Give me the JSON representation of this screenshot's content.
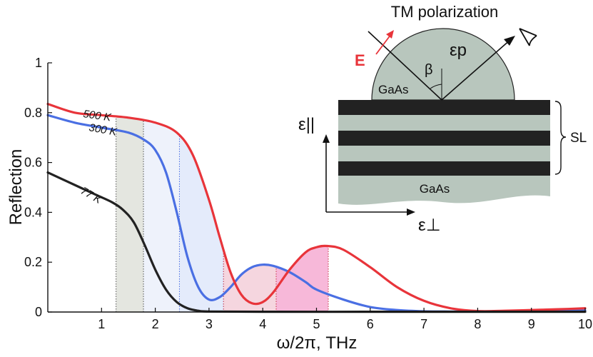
{
  "chart_data": {
    "type": "line",
    "xlabel": "ω/2π, THz",
    "ylabel": "Reflection",
    "xlim": [
      0,
      10
    ],
    "ylim": [
      0,
      1
    ],
    "x_ticks": [
      "1",
      "2",
      "3",
      "4",
      "5",
      "6",
      "7",
      "8",
      "9",
      "10"
    ],
    "y_ticks": [
      "0",
      "0.2",
      "0.4",
      "0.6",
      "0.8",
      "1"
    ],
    "grid": false,
    "series": [
      {
        "name": "500 K",
        "color": "#e8343a",
        "x": [
          0,
          0.5,
          1.0,
          1.5,
          2.0,
          2.4,
          2.7,
          3.0,
          3.2,
          3.4,
          3.6,
          3.8,
          4.0,
          4.2,
          4.5,
          4.8,
          5.0,
          5.2,
          5.5,
          6.0,
          6.5,
          7.0,
          7.5,
          8.0,
          8.5,
          9.0,
          9.5,
          10.0
        ],
        "y": [
          0.835,
          0.8,
          0.79,
          0.78,
          0.76,
          0.72,
          0.63,
          0.45,
          0.3,
          0.16,
          0.07,
          0.035,
          0.04,
          0.08,
          0.17,
          0.24,
          0.26,
          0.265,
          0.25,
          0.18,
          0.1,
          0.045,
          0.015,
          0.004,
          0.005,
          0.008,
          0.011,
          0.015
        ]
      },
      {
        "name": "300 K",
        "color": "#4a6fe3",
        "x": [
          0,
          0.5,
          1.0,
          1.5,
          1.8,
          2.0,
          2.2,
          2.4,
          2.6,
          2.8,
          3.0,
          3.2,
          3.4,
          3.6,
          3.8,
          4.0,
          4.2,
          4.5,
          4.8,
          5.0,
          5.5,
          6.0,
          6.5,
          7.0,
          7.5,
          8.0,
          8.5,
          9.0,
          9.5,
          10.0
        ],
        "y": [
          0.79,
          0.76,
          0.74,
          0.72,
          0.69,
          0.65,
          0.56,
          0.4,
          0.22,
          0.1,
          0.05,
          0.06,
          0.1,
          0.15,
          0.18,
          0.19,
          0.185,
          0.16,
          0.12,
          0.09,
          0.05,
          0.02,
          0.008,
          0.003,
          0.002,
          0.002,
          0.003,
          0.004,
          0.005,
          0.006
        ]
      },
      {
        "name": "77 K",
        "color": "#222222",
        "x": [
          0,
          0.3,
          0.6,
          0.9,
          1.2,
          1.4,
          1.6,
          1.8,
          2.0,
          2.2,
          2.4,
          2.6,
          2.8,
          3.0,
          4.0,
          6.0,
          8.0,
          10.0
        ],
        "y": [
          0.56,
          0.53,
          0.5,
          0.47,
          0.44,
          0.41,
          0.36,
          0.27,
          0.17,
          0.09,
          0.04,
          0.015,
          0.005,
          0.002,
          0.001,
          0.001,
          0.001,
          0.001
        ]
      }
    ],
    "shaded_regions": [
      {
        "from": 1.27,
        "to": 1.78,
        "color": "#e4e6e0",
        "line_color": "#555555"
      },
      {
        "from": 1.78,
        "to": 2.45,
        "color": "#eef2fb",
        "line_color": "#555555"
      },
      {
        "from": 2.45,
        "to": 3.27,
        "color": "#e4ebfb",
        "line_color": "#4a6fe3"
      },
      {
        "from": 3.27,
        "to": 4.25,
        "color": "#f5d6df",
        "line_color": "#c8364a"
      },
      {
        "from": 4.25,
        "to": 5.22,
        "color": "#f7b8d9",
        "line_color": "#c8364a"
      }
    ],
    "inset": {
      "title": "TM polarization",
      "field_label": "E",
      "prism_permittivity": "εp",
      "angle_label": "β",
      "prism_material": "GaAs",
      "substrate_material": "GaAs",
      "superlattice_label": "SL",
      "eps_parallel": "ε||",
      "eps_perp": "ε⊥"
    }
  }
}
